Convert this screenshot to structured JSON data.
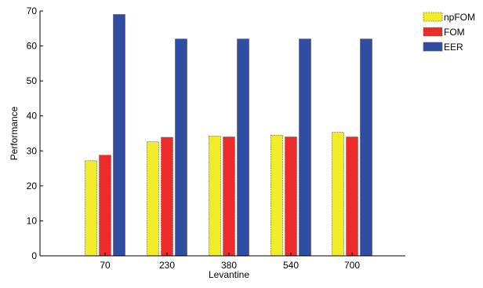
{
  "chart_data": {
    "type": "bar",
    "title": "",
    "xlabel": "Levantine",
    "ylabel": "Performance",
    "categories": [
      "70",
      "230",
      "380",
      "540",
      "700"
    ],
    "ylim": [
      0,
      70
    ],
    "yticks": [
      "0",
      "10",
      "20",
      "30",
      "40",
      "50",
      "60",
      "70"
    ],
    "legend_position": "top-right outside",
    "grid": false,
    "series": [
      {
        "name": "npFOM",
        "color": "#f0ec2a",
        "values": [
          27.2,
          32.6,
          34.2,
          34.5,
          35.3
        ]
      },
      {
        "name": "FOM",
        "color": "#ee2b2b",
        "values": [
          28.8,
          33.9,
          34.0,
          34.0,
          34.0
        ]
      },
      {
        "name": "EER",
        "color": "#2f4da3",
        "values": [
          69.0,
          62.0,
          62.0,
          62.0,
          62.0
        ]
      }
    ]
  }
}
